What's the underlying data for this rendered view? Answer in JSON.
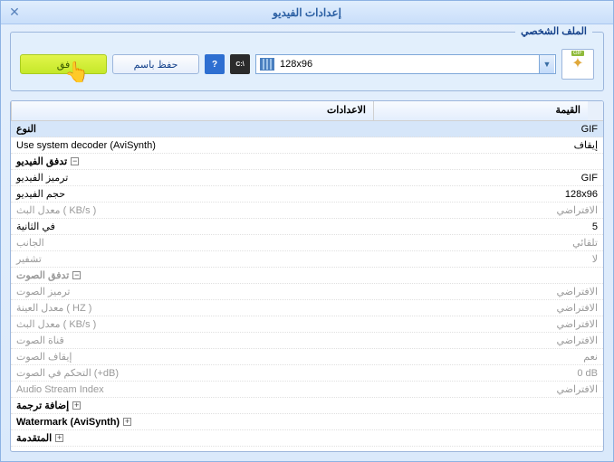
{
  "window": {
    "title": "إعدادات الفيديو"
  },
  "profile": {
    "legend": "الملف الشخصي",
    "format_badge": "GIF",
    "combo_value": "128x96",
    "save_as_label": "حفظ باسم",
    "ok_label": "فق"
  },
  "colors": {
    "cmd_btn_bg": "#2b2b2b",
    "help_btn_bg": "#2e6fd1"
  },
  "grid": {
    "header_settings": "الاعدادات",
    "header_value": "القيمة",
    "rows": [
      {
        "type": "row",
        "selected": true,
        "label": "النوع",
        "value": "GIF",
        "bold": true
      },
      {
        "type": "row",
        "label": "Use system decoder (AviSynth)",
        "value": "إيقاف",
        "ltr_label": true
      },
      {
        "type": "group",
        "label": "تدفق الفيديو",
        "exp": "-"
      },
      {
        "type": "row",
        "indent": 1,
        "label": "ترميز الفيديو",
        "value": "GIF"
      },
      {
        "type": "row",
        "indent": 1,
        "label": "حجم الفيديو",
        "value": "128x96"
      },
      {
        "type": "row",
        "indent": 1,
        "label": "معدل البث ( KB/s )",
        "value": "الافتراضي",
        "dim": true
      },
      {
        "type": "row",
        "indent": 1,
        "label": "في الثانية",
        "value": "5"
      },
      {
        "type": "row",
        "indent": 1,
        "label": "الجانب",
        "value": "تلقائي",
        "dim": true
      },
      {
        "type": "row",
        "indent": 1,
        "label": "تشفير",
        "value": "لا",
        "dim": true
      },
      {
        "type": "group",
        "label": "تدفق الصوت",
        "exp": "-",
        "dim": true
      },
      {
        "type": "row",
        "indent": 1,
        "label": "ترميز الصوت",
        "value": "الافتراضي",
        "dim": true
      },
      {
        "type": "row",
        "indent": 1,
        "label": "معدل العينة ( HZ )",
        "value": "الافتراضي",
        "dim": true
      },
      {
        "type": "row",
        "indent": 1,
        "label": "معدل البث ( KB/s )",
        "value": "الافتراضي",
        "dim": true
      },
      {
        "type": "row",
        "indent": 1,
        "label": "قناة الصوت",
        "value": "الافتراضي",
        "dim": true
      },
      {
        "type": "row",
        "indent": 1,
        "label": "إيقاف الصوت",
        "value": "نعم",
        "dim": true
      },
      {
        "type": "row",
        "indent": 1,
        "label": "التحكم في الصوت (+dB)",
        "value": "0 dB",
        "dim": true
      },
      {
        "type": "row",
        "indent": 1,
        "label": "Audio Stream Index",
        "value": "الافتراضي",
        "dim": true,
        "ltr_label": true
      },
      {
        "type": "group",
        "label": "إضافة ترجمة",
        "exp": "+"
      },
      {
        "type": "group",
        "label": "Watermark (AviSynth)",
        "exp": "+",
        "ltr_label": true
      },
      {
        "type": "group",
        "label": "المتقدمة",
        "exp": "+"
      }
    ]
  }
}
